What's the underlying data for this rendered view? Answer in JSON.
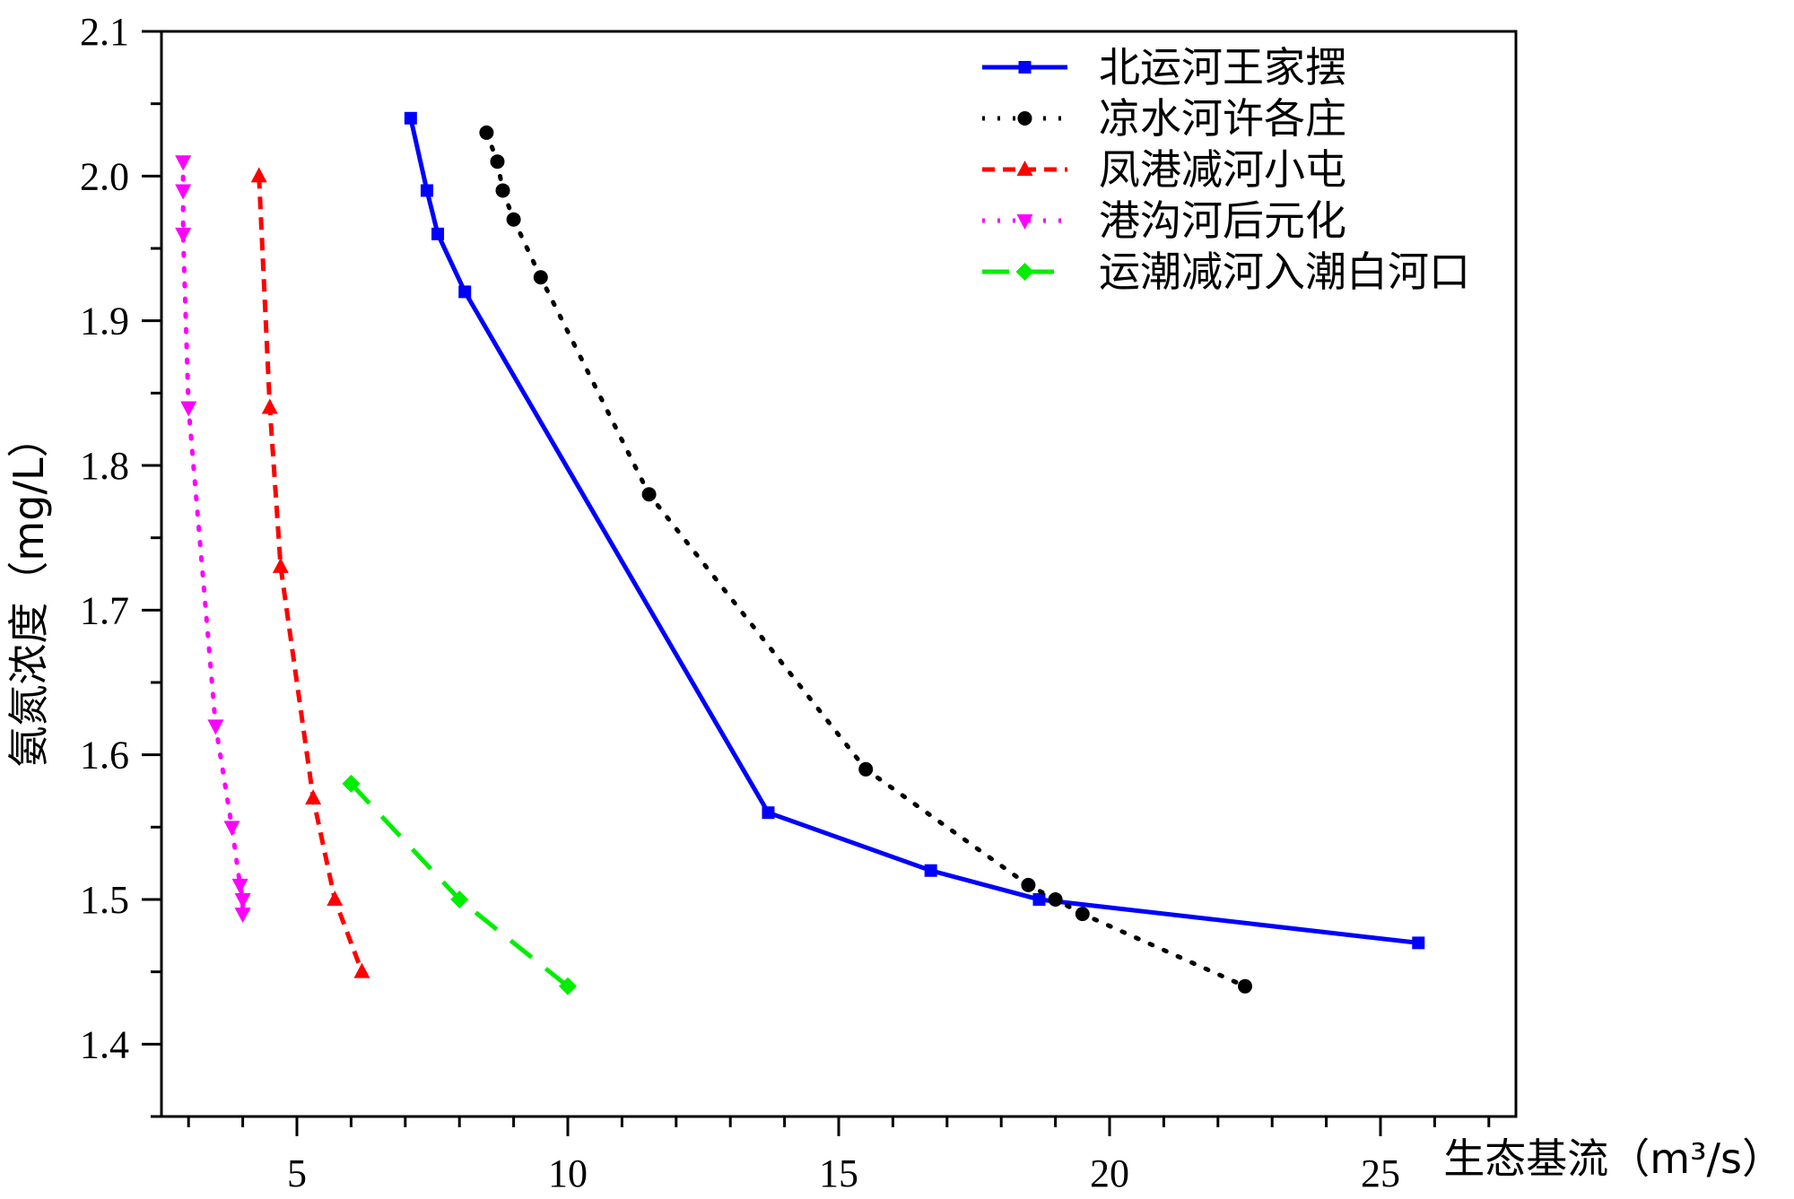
{
  "chart_data": {
    "type": "line",
    "xlabel": "生态基流（m³/s）",
    "ylabel": "氨氮浓度（mg/L）",
    "xlim": [
      2.5,
      27.5
    ],
    "ylim": [
      1.35,
      2.1
    ],
    "xticks": [
      5,
      10,
      15,
      20,
      25
    ],
    "yticks": [
      1.4,
      1.5,
      1.6,
      1.7,
      1.8,
      1.9,
      2.0,
      2.1
    ],
    "xtick_labels": [
      "5",
      "10",
      "15",
      "20",
      "25"
    ],
    "ytick_labels": [
      "1.4",
      "1.5",
      "1.6",
      "1.7",
      "1.8",
      "1.9",
      "2.0",
      "2.1"
    ],
    "grid": false,
    "legend_position": "top-right",
    "series": [
      {
        "name": "北运河王家摆",
        "color": "#0000ff",
        "line_style": "solid",
        "marker": "square",
        "x": [
          7.1,
          7.4,
          7.6,
          8.1,
          13.7,
          16.7,
          18.7,
          25.7
        ],
        "y": [
          2.04,
          1.99,
          1.96,
          1.92,
          1.56,
          1.52,
          1.5,
          1.47
        ]
      },
      {
        "name": "凉水河许各庄",
        "color": "#000000",
        "line_style": "dotted",
        "marker": "circle",
        "x": [
          8.5,
          8.7,
          8.8,
          9.0,
          9.5,
          11.5,
          15.5,
          18.5,
          19.0,
          19.5,
          22.5
        ],
        "y": [
          2.03,
          2.01,
          1.99,
          1.97,
          1.93,
          1.78,
          1.59,
          1.51,
          1.5,
          1.49,
          1.44
        ]
      },
      {
        "name": "凤港减河小屯",
        "color": "#ff0000",
        "line_style": "dashed",
        "marker": "triangle-up",
        "x": [
          4.3,
          4.5,
          4.7,
          5.3,
          5.7,
          6.2
        ],
        "y": [
          2.0,
          1.84,
          1.73,
          1.57,
          1.5,
          1.45
        ]
      },
      {
        "name": "港沟河后元化",
        "color": "#ff00ff",
        "line_style": "dotted",
        "marker": "triangle-down",
        "x": [
          2.9,
          2.9,
          2.9,
          3.0,
          3.5,
          3.8,
          3.95,
          4.0,
          4.0
        ],
        "y": [
          2.01,
          1.99,
          1.96,
          1.84,
          1.62,
          1.55,
          1.51,
          1.5,
          1.49
        ]
      },
      {
        "name": "运潮减河入潮白河口",
        "color": "#00ee00",
        "line_style": "long-dash",
        "marker": "diamond",
        "x": [
          6.0,
          8.0,
          10.0
        ],
        "y": [
          1.58,
          1.5,
          1.44
        ]
      }
    ]
  }
}
